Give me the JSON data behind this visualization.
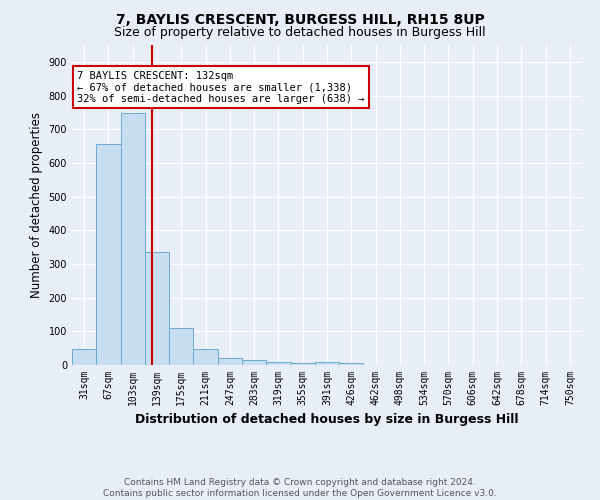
{
  "title": "7, BAYLIS CRESCENT, BURGESS HILL, RH15 8UP",
  "subtitle": "Size of property relative to detached houses in Burgess Hill",
  "xlabel": "Distribution of detached houses by size in Burgess Hill",
  "ylabel": "Number of detached properties",
  "footer_line1": "Contains HM Land Registry data © Crown copyright and database right 2024.",
  "footer_line2": "Contains public sector information licensed under the Open Government Licence v3.0.",
  "annotation_line1": "7 BAYLIS CRESCENT: 132sqm",
  "annotation_line2": "← 67% of detached houses are smaller (1,338)",
  "annotation_line3": "32% of semi-detached houses are larger (638) →",
  "bin_labels": [
    "31sqm",
    "67sqm",
    "103sqm",
    "139sqm",
    "175sqm",
    "211sqm",
    "247sqm",
    "283sqm",
    "319sqm",
    "355sqm",
    "391sqm",
    "426sqm",
    "462sqm",
    "498sqm",
    "534sqm",
    "570sqm",
    "606sqm",
    "642sqm",
    "678sqm",
    "714sqm",
    "750sqm"
  ],
  "bar_values": [
    47,
    657,
    748,
    335,
    110,
    47,
    22,
    14,
    8,
    5,
    8,
    5,
    0,
    0,
    0,
    0,
    0,
    0,
    0,
    0,
    0
  ],
  "bar_color": "#c8ddf0",
  "bar_edge_color": "#6aaad4",
  "bg_color": "#e8eef8",
  "grid_color": "#ffffff",
  "vline_x": 2.806,
  "vline_color": "#cc0000",
  "annotation_box_edge": "#cc0000",
  "ylim": [
    0,
    950
  ],
  "yticks": [
    0,
    100,
    200,
    300,
    400,
    500,
    600,
    700,
    800,
    900
  ],
  "title_fontsize": 10,
  "subtitle_fontsize": 9,
  "tick_fontsize": 7,
  "ylabel_fontsize": 8.5,
  "xlabel_fontsize": 9,
  "annotation_fontsize": 7.5,
  "footer_fontsize": 6.5
}
